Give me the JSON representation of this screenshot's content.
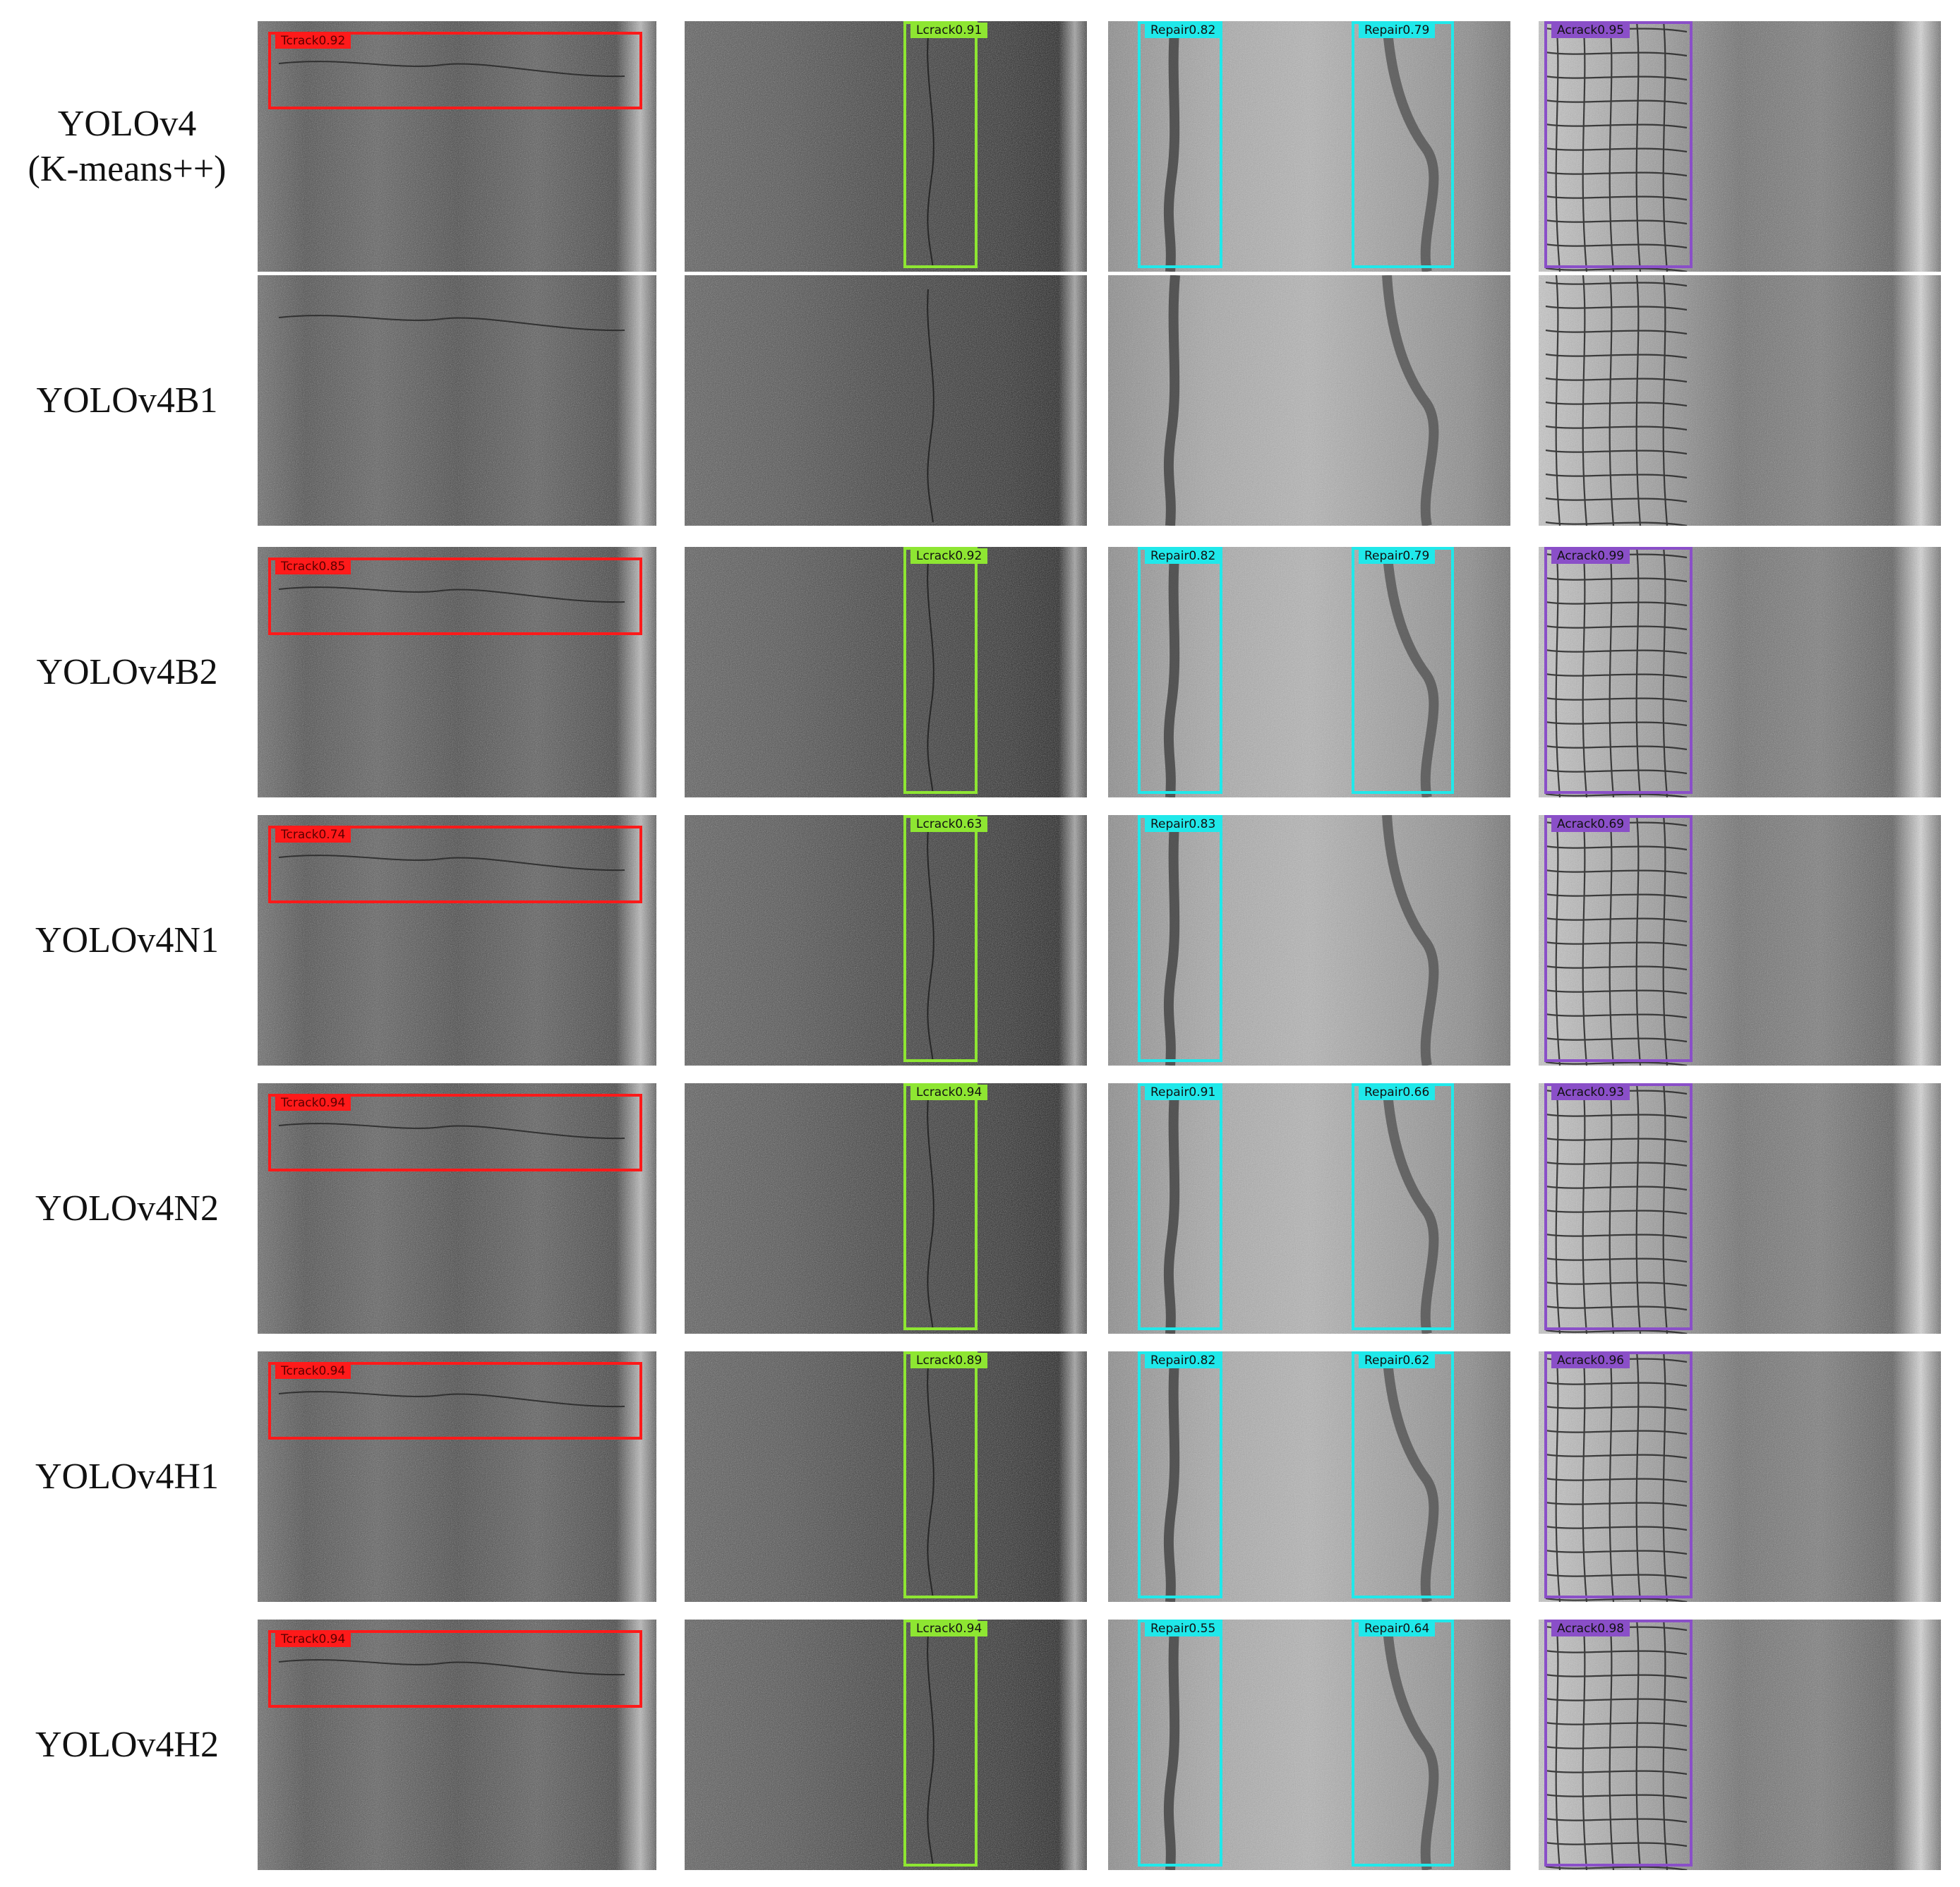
{
  "figure": {
    "columns": [
      "Tcrack",
      "Lcrack",
      "Repair",
      "Acrack"
    ],
    "colors": {
      "Tcrack": "#ff1a1a",
      "Lcrack": "#8ee632",
      "Repair": "#20e8ea",
      "Acrack": "#8a4fc8"
    },
    "rows": [
      {
        "label_line1": "YOLOv4",
        "label_line2": "(K-means++)",
        "tcrack": [
          "Tcrack0.92"
        ],
        "lcrack": [
          "Lcrack0.91"
        ],
        "repair": [
          "Repair0.82",
          "Repair0.79"
        ],
        "acrack": [
          "Acrack0.95"
        ]
      },
      {
        "label_line1": "YOLOv4B1",
        "label_line2": "",
        "tcrack": [],
        "lcrack": [],
        "repair": [],
        "acrack": []
      },
      {
        "label_line1": "YOLOv4B2",
        "label_line2": "",
        "tcrack": [
          "Tcrack0.85"
        ],
        "lcrack": [
          "Lcrack0.92"
        ],
        "repair": [
          "Repair0.82",
          "Repair0.79"
        ],
        "acrack": [
          "Acrack0.99"
        ]
      },
      {
        "label_line1": "YOLOv4N1",
        "label_line2": "",
        "tcrack": [
          "Tcrack0.74"
        ],
        "lcrack": [
          "Lcrack0.63"
        ],
        "repair": [
          "Repair0.83"
        ],
        "acrack": [
          "Acrack0.69"
        ]
      },
      {
        "label_line1": "YOLOv4N2",
        "label_line2": "",
        "tcrack": [
          "Tcrack0.94"
        ],
        "lcrack": [
          "Lcrack0.94"
        ],
        "repair": [
          "Repair0.91",
          "Repair0.66"
        ],
        "acrack": [
          "Acrack0.93"
        ]
      },
      {
        "label_line1": "YOLOv4H1",
        "label_line2": "",
        "tcrack": [
          "Tcrack0.94"
        ],
        "lcrack": [
          "Lcrack0.89"
        ],
        "repair": [
          "Repair0.82",
          "Repair0.62"
        ],
        "acrack": [
          "Acrack0.96"
        ]
      },
      {
        "label_line1": "YOLOv4H2",
        "label_line2": "",
        "tcrack": [
          "Tcrack0.94"
        ],
        "lcrack": [
          "Lcrack0.94"
        ],
        "repair": [
          "Repair0.55",
          "Repair0.64"
        ],
        "acrack": [
          "Acrack0.98"
        ]
      }
    ]
  }
}
